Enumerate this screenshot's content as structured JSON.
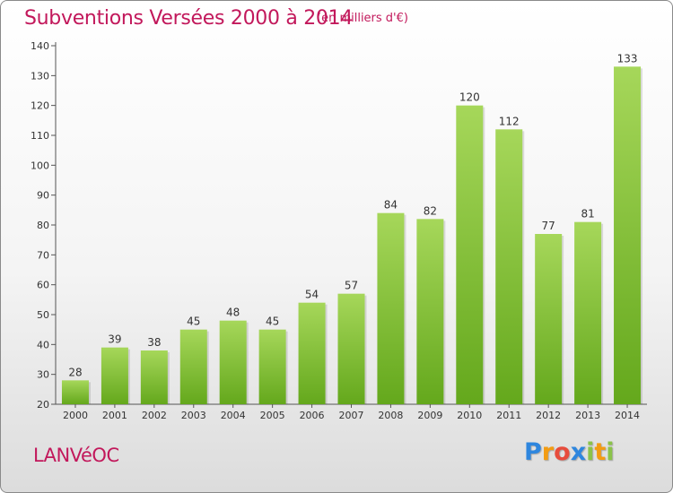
{
  "header": {
    "title": "Subventions Versées 2000 à 2014",
    "subtitle": "(en milliers d'€)"
  },
  "footer": {
    "commune": "LANVéOC",
    "logo_letters": [
      "P",
      "r",
      "o",
      "x",
      "i",
      "t",
      "i"
    ],
    "logo_colors": [
      "#2e86de",
      "#f39c12",
      "#e74c3c",
      "#2e86de",
      "#8bc34a",
      "#f39c12",
      "#8bc34a"
    ]
  },
  "chart_data": {
    "type": "bar",
    "title": "Subventions Versées 2000 à 2014",
    "subtitle": "(en milliers d'€)",
    "xlabel": "",
    "ylabel": "",
    "categories": [
      "2000",
      "2001",
      "2002",
      "2003",
      "2004",
      "2005",
      "2006",
      "2007",
      "2008",
      "2009",
      "2010",
      "2011",
      "2012",
      "2013",
      "2014"
    ],
    "values": [
      28,
      39,
      38,
      45,
      48,
      45,
      54,
      57,
      84,
      82,
      120,
      112,
      77,
      81,
      133
    ],
    "ylim": [
      20,
      140
    ],
    "yticks": [
      "20",
      "30",
      "40",
      "50",
      "60",
      "70",
      "80",
      "90",
      "100",
      "110",
      "120",
      "130",
      "140"
    ],
    "grid": false,
    "bar_color": "#7cbf2e",
    "bar_color_light": "#a6d75a"
  }
}
